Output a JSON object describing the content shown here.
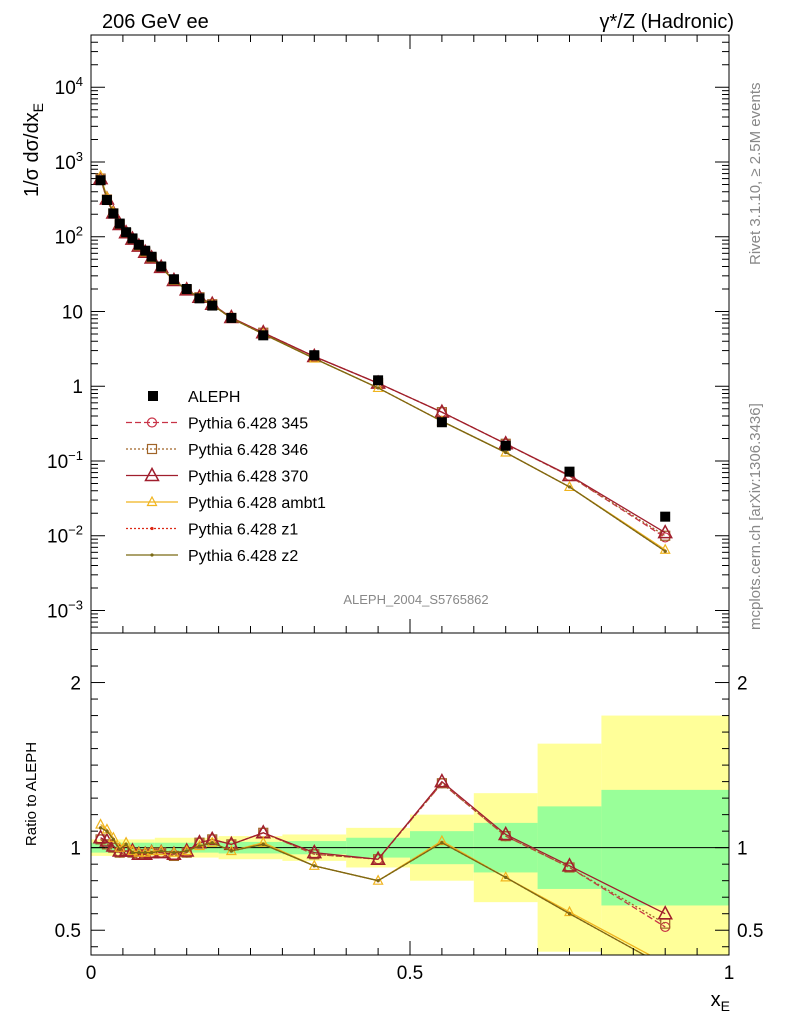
{
  "header": {
    "left_title": "206 GeV ee",
    "right_title": "γ*/Z (Hadronic)"
  },
  "side_text": {
    "rivet": "Rivet 3.1.10, ≥ 2.5M events",
    "mcplots": "mcplots.cern.ch [arXiv:1306.3436]"
  },
  "analysis_label": "ALEPH_2004_S5765862",
  "colors": {
    "band_inner": "#99ff99",
    "band_outer": "#ffff99",
    "p345": "#c83246",
    "p346": "#a06428",
    "p370": "#a01e2d",
    "ambt1": "#f0b41e",
    "z1": "#dc2814",
    "z2": "#7a6a14"
  },
  "chart_data": [
    {
      "type": "line",
      "panel": "main",
      "ylabel": "1/σ dσ/dx_E",
      "yscale": "log",
      "ylim": [
        0.0005,
        50000
      ],
      "xlim": [
        0,
        1
      ],
      "yticks": [
        {
          "v": 0.001,
          "b": "10",
          "e": "−3"
        },
        {
          "v": 0.01,
          "b": "10",
          "e": "−2"
        },
        {
          "v": 0.1,
          "b": "10",
          "e": "−1"
        },
        {
          "v": 1,
          "b": "1",
          "e": ""
        },
        {
          "v": 10,
          "b": "10",
          "e": ""
        },
        {
          "v": 100,
          "b": "10",
          "e": "2"
        },
        {
          "v": 1000,
          "b": "10",
          "e": "3"
        },
        {
          "v": 10000,
          "b": "10",
          "e": "4"
        }
      ],
      "x": [
        0.015,
        0.025,
        0.035,
        0.045,
        0.055,
        0.065,
        0.075,
        0.085,
        0.095,
        0.11,
        0.13,
        0.15,
        0.17,
        0.19,
        0.22,
        0.27,
        0.35,
        0.45,
        0.55,
        0.65,
        0.75,
        0.9
      ],
      "data": {
        "name": "ALEPH",
        "values": [
          570,
          310,
          205,
          150,
          115,
          95,
          78,
          65,
          54,
          40,
          27,
          20,
          15,
          12,
          8.2,
          4.8,
          2.6,
          1.2,
          0.33,
          0.16,
          0.072,
          0.018
        ]
      },
      "series": [
        {
          "name": "Pythia 6.428 345",
          "color_key": "p345",
          "marker": "circle",
          "dash": "6,3",
          "values": [
            600,
            315,
            205,
            145,
            112,
            92,
            75,
            62,
            52,
            39,
            26,
            19.5,
            15.5,
            12.5,
            8.2,
            5.2,
            2.5,
            1.1,
            0.45,
            0.17,
            0.063,
            0.0095
          ]
        },
        {
          "name": "Pythia 6.428 346",
          "color_key": "p346",
          "marker": "square",
          "dash": "2,2",
          "values": [
            600,
            315,
            205,
            145,
            112,
            92,
            75,
            62,
            52,
            39,
            26,
            19.5,
            15.5,
            12.5,
            8.2,
            5.2,
            2.5,
            1.1,
            0.45,
            0.17,
            0.063,
            0.01
          ]
        },
        {
          "name": "Pythia 6.428 370",
          "color_key": "p370",
          "marker": "triangle",
          "dash": "",
          "values": [
            600,
            320,
            208,
            146,
            113,
            93,
            75,
            62,
            52,
            39,
            26,
            19.5,
            15.5,
            12.5,
            8.3,
            5.2,
            2.5,
            1.1,
            0.45,
            0.17,
            0.064,
            0.011
          ]
        },
        {
          "name": "Pythia 6.428 ambt1",
          "color_key": "ambt1",
          "marker": "triangle-small",
          "dash": "",
          "values": [
            650,
            340,
            215,
            148,
            112,
            92,
            75,
            62,
            52,
            39,
            26,
            19.5,
            15.2,
            12.3,
            8.1,
            5.0,
            2.35,
            0.95,
            0.34,
            0.13,
            0.045,
            0.0065
          ]
        },
        {
          "name": "Pythia 6.428 z1",
          "color_key": "z1",
          "marker": "dot",
          "dash": "2,2",
          "values": [
            620,
            330,
            210,
            147,
            112,
            92,
            75,
            62,
            52,
            39,
            26,
            19.5,
            15.2,
            12.3,
            8.1,
            5.0,
            2.35,
            0.95,
            0.34,
            0.13,
            0.045,
            0.0062
          ]
        },
        {
          "name": "Pythia 6.428 z2",
          "color_key": "z2",
          "marker": "dot",
          "dash": "",
          "values": [
            620,
            330,
            210,
            147,
            112,
            92,
            75,
            62,
            52,
            39,
            26,
            19.5,
            15.2,
            12.3,
            8.1,
            5.0,
            2.35,
            0.95,
            0.34,
            0.13,
            0.045,
            0.0062
          ]
        }
      ]
    },
    {
      "type": "line",
      "panel": "ratio",
      "ylabel": "Ratio to ALEPH",
      "xlabel": "x_E",
      "ylim": [
        0.35,
        2.3
      ],
      "xlim": [
        0,
        1
      ],
      "xticks": [
        {
          "v": 0,
          "t": "0"
        },
        {
          "v": 0.5,
          "t": "0.5"
        },
        {
          "v": 1,
          "t": "1"
        }
      ],
      "yticks": [
        {
          "v": 0.5,
          "t": "0.5"
        },
        {
          "v": 1,
          "t": "1"
        },
        {
          "v": 2,
          "t": "2"
        }
      ],
      "bands": [
        {
          "x0": 0.0,
          "x1": 0.1,
          "inner": [
            0.97,
            1.03
          ],
          "outer": [
            0.95,
            1.05
          ]
        },
        {
          "x0": 0.1,
          "x1": 0.2,
          "inner": [
            0.97,
            1.03
          ],
          "outer": [
            0.94,
            1.06
          ]
        },
        {
          "x0": 0.2,
          "x1": 0.3,
          "inner": [
            0.965,
            1.035
          ],
          "outer": [
            0.93,
            1.07
          ]
        },
        {
          "x0": 0.3,
          "x1": 0.4,
          "inner": [
            0.96,
            1.04
          ],
          "outer": [
            0.92,
            1.08
          ]
        },
        {
          "x0": 0.4,
          "x1": 0.5,
          "inner": [
            0.94,
            1.06
          ],
          "outer": [
            0.88,
            1.12
          ]
        },
        {
          "x0": 0.5,
          "x1": 0.6,
          "inner": [
            0.9,
            1.1
          ],
          "outer": [
            0.8,
            1.2
          ]
        },
        {
          "x0": 0.6,
          "x1": 0.7,
          "inner": [
            0.85,
            1.15
          ],
          "outer": [
            0.67,
            1.33
          ]
        },
        {
          "x0": 0.7,
          "x1": 0.8,
          "inner": [
            0.75,
            1.25
          ],
          "outer": [
            0.37,
            1.63
          ]
        },
        {
          "x0": 0.8,
          "x1": 1.0,
          "inner": [
            0.65,
            1.35
          ],
          "outer": [
            0.2,
            1.8
          ]
        }
      ],
      "x": [
        0.015,
        0.025,
        0.035,
        0.045,
        0.055,
        0.065,
        0.075,
        0.085,
        0.095,
        0.11,
        0.13,
        0.15,
        0.17,
        0.19,
        0.22,
        0.27,
        0.35,
        0.45,
        0.55,
        0.65,
        0.75,
        0.9
      ],
      "series": [
        {
          "name": "Pythia 6.428 345",
          "color_key": "p345",
          "marker": "circle",
          "dash": "6,3",
          "values": [
            1.05,
            1.02,
            1.0,
            0.97,
            0.98,
            0.97,
            0.96,
            0.96,
            0.97,
            0.97,
            0.95,
            0.97,
            1.03,
            1.05,
            1.02,
            1.09,
            0.96,
            0.93,
            1.39,
            1.07,
            0.88,
            0.52
          ]
        },
        {
          "name": "Pythia 6.428 346",
          "color_key": "p346",
          "marker": "square",
          "dash": "2,2",
          "values": [
            1.05,
            1.02,
            1.0,
            0.97,
            0.98,
            0.97,
            0.96,
            0.96,
            0.97,
            0.97,
            0.95,
            0.97,
            1.03,
            1.05,
            1.02,
            1.09,
            0.96,
            0.93,
            1.39,
            1.07,
            0.88,
            0.54
          ]
        },
        {
          "name": "Pythia 6.428 370",
          "color_key": "p370",
          "marker": "triangle",
          "dash": "",
          "values": [
            1.06,
            1.04,
            1.01,
            0.98,
            0.98,
            0.98,
            0.96,
            0.96,
            0.97,
            0.97,
            0.96,
            0.98,
            1.03,
            1.05,
            1.02,
            1.09,
            0.97,
            0.93,
            1.4,
            1.08,
            0.89,
            0.6
          ]
        },
        {
          "name": "Pythia 6.428 ambt1",
          "color_key": "ambt1",
          "marker": "triangle-small",
          "dash": "",
          "values": [
            1.14,
            1.11,
            1.06,
            1.0,
            1.03,
            0.98,
            0.97,
            0.97,
            0.98,
            0.98,
            0.97,
            0.98,
            1.01,
            1.03,
            0.98,
            1.03,
            0.89,
            0.8,
            1.04,
            0.82,
            0.61,
            0.3
          ]
        },
        {
          "name": "Pythia 6.428 z1",
          "color_key": "z1",
          "marker": "dot",
          "dash": "2,2",
          "values": [
            1.12,
            1.1,
            1.05,
            0.99,
            1.02,
            0.97,
            0.97,
            0.97,
            0.97,
            0.98,
            0.97,
            0.98,
            1.01,
            1.03,
            0.98,
            1.02,
            0.89,
            0.8,
            1.03,
            0.82,
            0.6,
            0.28
          ]
        },
        {
          "name": "Pythia 6.428 z2",
          "color_key": "z2",
          "marker": "dot",
          "dash": "",
          "values": [
            1.12,
            1.1,
            1.05,
            0.99,
            1.02,
            0.97,
            0.97,
            0.97,
            0.97,
            0.98,
            0.97,
            0.98,
            1.01,
            1.03,
            0.98,
            1.02,
            0.89,
            0.8,
            1.03,
            0.82,
            0.6,
            0.28
          ]
        }
      ]
    }
  ]
}
